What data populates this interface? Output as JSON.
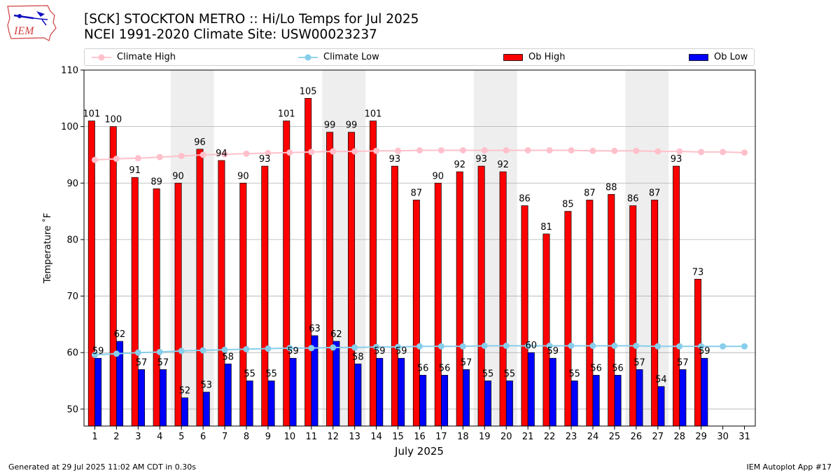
{
  "header": {
    "title_line1": "[SCK] STOCKTON METRO :: Hi/Lo Temps for Jul 2025",
    "title_line2": "NCEI 1991-2020 Climate Site: USW00023237"
  },
  "logo": {
    "text": "IEM"
  },
  "footer": {
    "left": "Generated at 29 Jul 2025 11:02 AM CDT in 0.30s",
    "right": "IEM Autoplot App #17"
  },
  "colors": {
    "ob_high": "#ff0000",
    "ob_low": "#0000ff",
    "climate_high": "#ffc0cb",
    "climate_low": "#87ceeb",
    "weekend_shade": "#eeeeee",
    "grid": "#b0b0b0"
  },
  "chart_data": {
    "type": "bar",
    "title": "[SCK] STOCKTON METRO :: Hi/Lo Temps for Jul 2025",
    "subtitle": "NCEI 1991-2020 Climate Site: USW00023237",
    "xlabel": "July 2025",
    "ylabel": "Temperature ˚F",
    "ylim": [
      47,
      110
    ],
    "yticks": [
      50,
      60,
      70,
      80,
      90,
      100,
      110
    ],
    "xlim": [
      0.5,
      31.5
    ],
    "x": [
      1,
      2,
      3,
      4,
      5,
      6,
      7,
      8,
      9,
      10,
      11,
      12,
      13,
      14,
      15,
      16,
      17,
      18,
      19,
      20,
      21,
      22,
      23,
      24,
      25,
      26,
      27,
      28,
      29,
      30,
      31
    ],
    "grid": "horizontal",
    "legend_position": "top",
    "shaded_days": [
      5,
      6,
      12,
      13,
      19,
      20,
      26,
      27
    ],
    "series": [
      {
        "name": "Ob High",
        "kind": "bar",
        "values": [
          101,
          100,
          91,
          89,
          90,
          96,
          94,
          90,
          93,
          101,
          105,
          99,
          99,
          101,
          93,
          87,
          90,
          92,
          93,
          92,
          86,
          81,
          85,
          87,
          88,
          86,
          87,
          93,
          73,
          null,
          null
        ]
      },
      {
        "name": "Ob Low",
        "kind": "bar",
        "values": [
          59,
          62,
          57,
          57,
          52,
          53,
          58,
          55,
          55,
          59,
          63,
          62,
          58,
          59,
          59,
          56,
          56,
          57,
          55,
          55,
          60,
          59,
          55,
          56,
          56,
          57,
          54,
          57,
          59,
          null,
          null
        ]
      },
      {
        "name": "Climate High",
        "kind": "line",
        "values": [
          94.1,
          94.3,
          94.4,
          94.6,
          94.8,
          95.0,
          95.1,
          95.2,
          95.3,
          95.4,
          95.5,
          95.6,
          95.6,
          95.7,
          95.7,
          95.8,
          95.8,
          95.8,
          95.8,
          95.8,
          95.8,
          95.8,
          95.8,
          95.7,
          95.7,
          95.7,
          95.6,
          95.6,
          95.5,
          95.5,
          95.4
        ]
      },
      {
        "name": "Climate Low",
        "kind": "line",
        "values": [
          59.6,
          59.8,
          60.0,
          60.1,
          60.3,
          60.4,
          60.5,
          60.6,
          60.7,
          60.8,
          60.8,
          60.9,
          60.9,
          61.0,
          61.0,
          61.1,
          61.1,
          61.1,
          61.2,
          61.2,
          61.2,
          61.2,
          61.2,
          61.2,
          61.2,
          61.2,
          61.1,
          61.1,
          61.1,
          61.1,
          61.1
        ]
      }
    ]
  }
}
